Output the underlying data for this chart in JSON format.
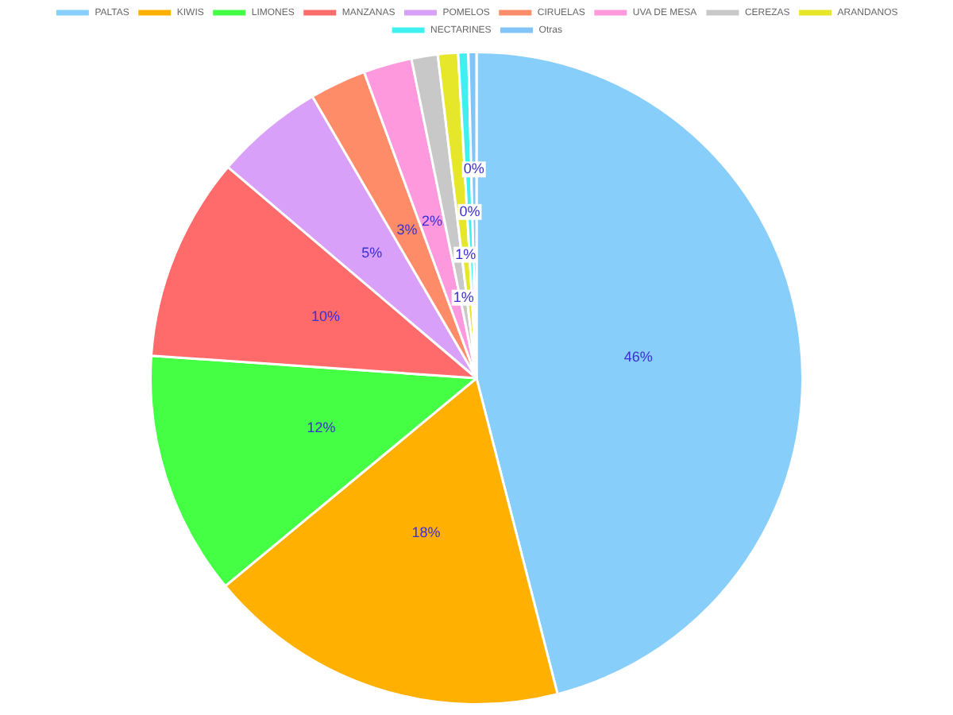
{
  "chart_data": {
    "type": "pie",
    "categories": [
      "PALTAS",
      "KIWIS",
      "LIMONES",
      "MANZANAS",
      "POMELOS",
      "CIRUELAS",
      "UVA DE MESA",
      "CEREZAS",
      "ARANDANOS",
      "NECTARINES",
      "Otras"
    ],
    "values": [
      46.0,
      18.0,
      12.1,
      10.1,
      5.4,
      2.8,
      2.4,
      1.3,
      1.0,
      0.5,
      0.4
    ],
    "colors": [
      "#87cefa",
      "#ffb000",
      "#44ff44",
      "#ff6b6b",
      "#d8a0f8",
      "#ff8c69",
      "#ff99dd",
      "#c8c8c8",
      "#e6e62a",
      "#40f0f0",
      "#80c4f8"
    ],
    "value_labels": [
      "46%",
      "18%",
      "12%",
      "10%",
      "5%",
      "3%",
      "2%",
      "1%",
      "1%",
      "0%",
      "0%"
    ],
    "legend": "top"
  }
}
